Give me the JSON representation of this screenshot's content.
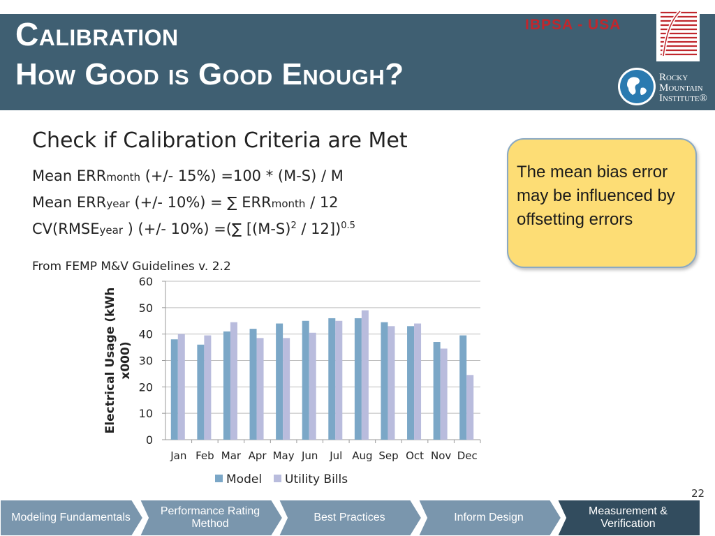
{
  "header": {
    "title_line1": "Calibration",
    "title_line2": "How Good is Good Enough?",
    "brand": "IBPSA - USA",
    "rmi_line1": "Rocky",
    "rmi_line2": "Mountain",
    "rmi_line3": "Institute®"
  },
  "content": {
    "subtitle": "Check if Calibration Criteria are Met",
    "formula1": {
      "a": "Mean ERR",
      "sub": "month",
      "b": " (+/- 15%) =100 * (M-S) / M"
    },
    "formula2": {
      "a": "Mean ERR",
      "sub": "year",
      "b": "   (+/- 10%) = ∑ ERR",
      "sub2": "month",
      "c": "  / 12"
    },
    "formula3": {
      "a": "CV(RMSE",
      "sub": "year",
      "b": " )  (+/- 10%) =(∑ [(M-S)",
      "sup1": "2",
      "c": " / 12])",
      "sup2": "0.5"
    },
    "source": "From FEMP M&V Guidelines v. 2.2"
  },
  "callout": {
    "text": "The mean bias error may be influenced by offsetting errors"
  },
  "chart_data": {
    "type": "bar",
    "categories": [
      "Jan",
      "Feb",
      "Mar",
      "Apr",
      "May",
      "Jun",
      "Jul",
      "Aug",
      "Sep",
      "Oct",
      "Nov",
      "Dec"
    ],
    "series": [
      {
        "name": "Model",
        "values": [
          38,
          36,
          41,
          42,
          44,
          45,
          46,
          46,
          44.5,
          43,
          37,
          39.5
        ],
        "color": "#7ba7c7"
      },
      {
        "name": "Utility Bills",
        "values": [
          40,
          39.5,
          44.5,
          38.5,
          38.5,
          40.5,
          45,
          49,
          43,
          44,
          34.5,
          24.5
        ],
        "color": "#b9bcdd"
      }
    ],
    "ylabel": "Electrical Usage (kWh x000)",
    "ylim": [
      0,
      60
    ],
    "yticks": [
      0,
      10,
      20,
      30,
      40,
      50,
      60
    ],
    "grid": true,
    "legend": "bottom"
  },
  "page_number": "22",
  "nav": [
    {
      "label": "Modeling Fundamentals",
      "active": false
    },
    {
      "label": "Performance Rating Method",
      "active": false
    },
    {
      "label": "Best Practices",
      "active": false
    },
    {
      "label": "Inform Design",
      "active": false
    },
    {
      "label": "Measurement & Verification",
      "active": true
    }
  ],
  "colors": {
    "header_bg": "#3f5f72",
    "nav_bg": "#7a96ad",
    "nav_active_bg": "#324c5e",
    "callout_bg": "#fddd75",
    "brand_red": "#c0272d"
  }
}
